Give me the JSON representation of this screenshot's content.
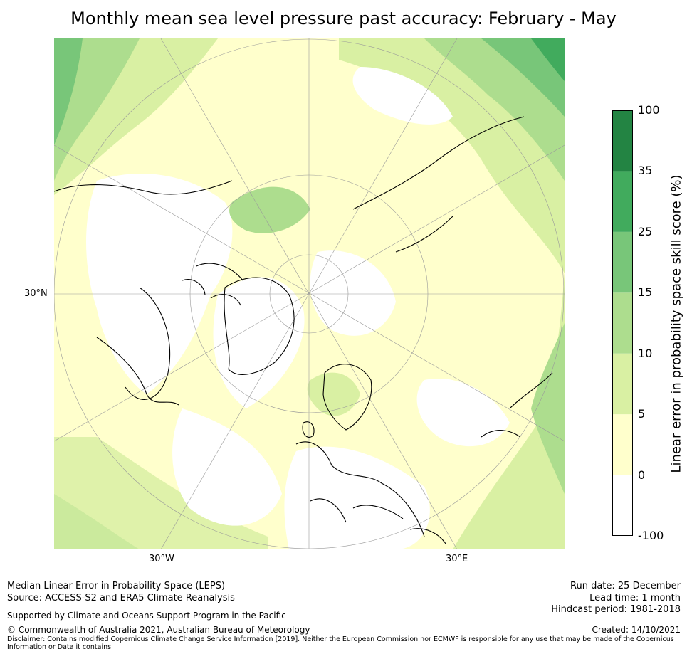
{
  "title": "Monthly mean sea level pressure past accuracy: February - May",
  "map": {
    "projection": "north-polar-stereographic",
    "lat_label": "30°N",
    "lon_labels": [
      "30°W",
      "30°E"
    ]
  },
  "colorbar": {
    "title": "Linear error in probability space skill score (%)",
    "ticks": [
      "-100",
      "0",
      "5",
      "10",
      "15",
      "25",
      "35",
      "100"
    ],
    "colors": [
      "#ffffff",
      "#ffffcc",
      "#d9f0a3",
      "#addd8e",
      "#78c679",
      "#41ab5d",
      "#238443"
    ]
  },
  "footer": {
    "left_line1": "Median Linear Error in Probability Space (LEPS)",
    "left_line2": "Source: ACCESS-S2 and ERA5 Climate Reanalysis",
    "support": "Supported by Climate and Oceans Support Program in the Pacific",
    "copyright": "© Commonwealth of Australia 2021, Australian Bureau of Meteorology",
    "disclaimer_line1": "Disclaimer: Contains modified Copernicus Climate Change Service Information [2019]. Neither the European Commission nor ECMWF is responsible for any use that may be made of the Copernicus",
    "disclaimer_line2": "Information or Data it contains.",
    "run_date": "Run date: 25 December",
    "lead_time": "Lead time: 1 month",
    "hindcast": "Hindcast period: 1981-2018",
    "created": "Created: 14/10/2021"
  }
}
